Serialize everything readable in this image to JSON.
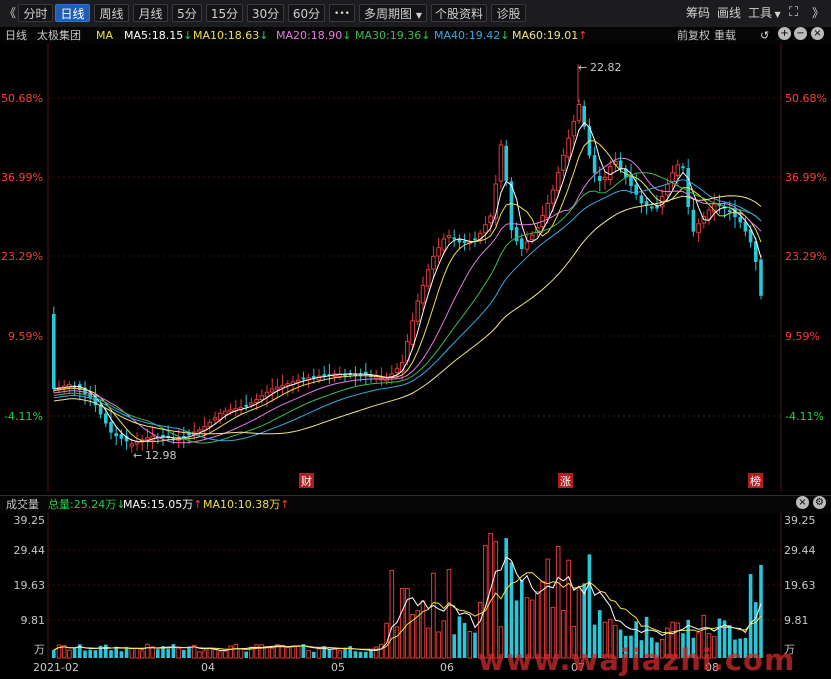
{
  "toolbar": {
    "back_glyph": "《",
    "tabs": [
      "分时",
      "日线",
      "周线",
      "月线",
      "5分",
      "15分",
      "30分",
      "60分"
    ],
    "more_glyph": "•••",
    "multi_period": "多周期图",
    "f10": "个股资料",
    "diagnose": "诊股",
    "chip": "筹码",
    "draw": "画线",
    "tools": "工具",
    "fullscreen_glyph": "⛶",
    "collapse_glyph": "》"
  },
  "chart_header": {
    "period": "日线",
    "stock_name": "太极集团",
    "indicator": "MA",
    "ma5": "MA5:18.15",
    "ma10": "MA10:18.63",
    "ma20": "MA20:18.90",
    "ma30": "MA30:19.36",
    "ma40": "MA40:19.42",
    "ma60": "MA60:19.01",
    "adjust": "前复权",
    "overlay": "重载"
  },
  "price_axis": [
    "50.68%",
    "36.99%",
    "23.29%",
    "9.59%",
    "-4.11%"
  ],
  "annotations": {
    "high": "22.82",
    "low": "12.98"
  },
  "event_markers": [
    "财",
    "涨",
    "榜"
  ],
  "volume_header": {
    "title": "成交量",
    "total": "总量:25.24万",
    "ma5": "MA5:15.05万",
    "ma10": "MA10:10.38万"
  },
  "volume_axis": [
    "39.25",
    "29.44",
    "19.63",
    "9.81",
    "万"
  ],
  "x_axis": [
    "2021-02",
    "04",
    "05",
    "06",
    "07",
    "08"
  ],
  "watermark": "www.wajiazhi.com",
  "colors": {
    "up": "#e23a3a",
    "down": "#27c6d8",
    "ma5": "#ffffff",
    "ma10": "#f0e04a",
    "ma20": "#e77ae8",
    "ma30": "#3fb950",
    "ma40": "#36a9e8",
    "ma60": "#f0e68c",
    "axis_red": "#ff3b3b",
    "axis_green": "#23d14a"
  }
}
